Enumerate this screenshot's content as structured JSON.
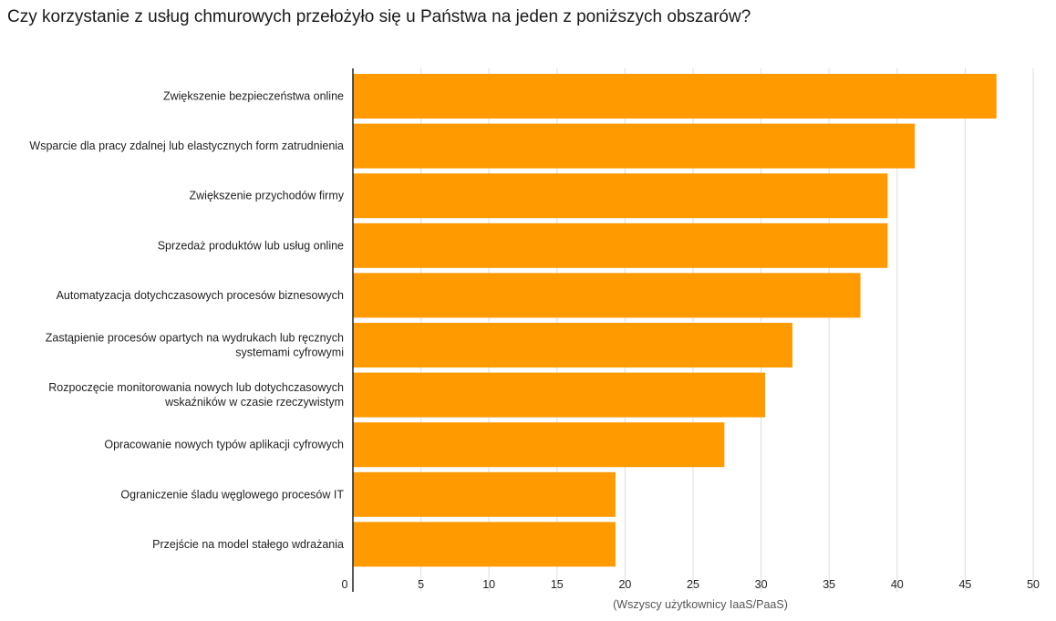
{
  "title": "Czy korzystanie z usług chmurowych przełożyło się u Państwa na jeden z poniższych obszarów?",
  "colors": {
    "bar": "#FF9A00",
    "grid": "#dddddd",
    "axis": "#222222"
  },
  "chart_data": {
    "type": "bar",
    "orientation": "horizontal",
    "categories": [
      [
        "Zwiększenie bezpieczeństwa online"
      ],
      [
        "Wsparcie dla pracy zdalnej lub elastycznych form zatrudnienia"
      ],
      [
        "Zwiększenie przychodów firmy"
      ],
      [
        "Sprzedaż produktów lub usług online"
      ],
      [
        "Automatyzacja dotychczasowych procesów biznesowych"
      ],
      [
        "Zastąpienie procesów opartych na wydrukach lub ręcznych",
        "systemami cyfrowymi"
      ],
      [
        "Rozpoczęcie monitorowania nowych lub dotychczasowych",
        "wskaźników w czasie rzeczywistym"
      ],
      [
        "Opracowanie nowych typów aplikacji cyfrowych"
      ],
      [
        "Ograniczenie śladu węglowego procesów IT"
      ],
      [
        "Przejście na model stałego wdrażania"
      ]
    ],
    "values": [
      47.3,
      41.3,
      39.3,
      39.3,
      37.3,
      32.3,
      30.3,
      27.3,
      19.3,
      19.3
    ],
    "xlabel": "(Wszyscy użytkownicy IaaS/PaaS)",
    "xlim": [
      0,
      50
    ],
    "xticks": [
      "0",
      "5",
      "10",
      "15",
      "20",
      "25",
      "30",
      "35",
      "40",
      "45",
      "50"
    ],
    "grid": true
  }
}
